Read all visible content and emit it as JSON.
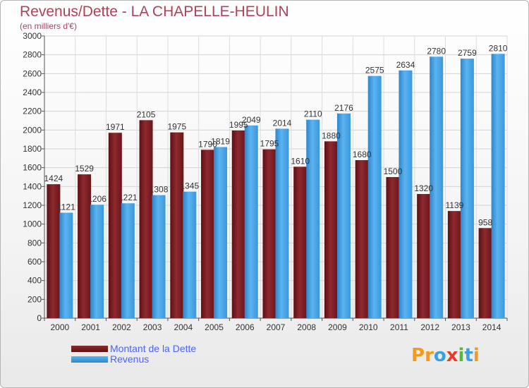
{
  "title": "Revenus/Dette - LA CHAPELLE-HEULIN",
  "subtitle": "(en milliers d'€)",
  "logo": {
    "text": "Proxiti",
    "letters": [
      {
        "ch": "P",
        "color": "#f39a1e"
      },
      {
        "ch": "r",
        "color": "#f39a1e"
      },
      {
        "ch": "o",
        "color": "#3aa0e0"
      },
      {
        "ch": "x",
        "color": "#e63b2e"
      },
      {
        "ch": "i",
        "color": "#5ab837"
      },
      {
        "ch": "t",
        "color": "#3aa0e0"
      },
      {
        "ch": "i",
        "color": "#f39a1e"
      }
    ]
  },
  "chart_data": {
    "type": "bar",
    "categories": [
      "2000",
      "2001",
      "2002",
      "2003",
      "2004",
      "2005",
      "2006",
      "2007",
      "2008",
      "2009",
      "2010",
      "2011",
      "2012",
      "2013",
      "2014"
    ],
    "series": [
      {
        "name": "Montant de la Dette",
        "color": "#7a1a1e",
        "values": [
          1424,
          1529,
          1971,
          2105,
          1975,
          1790,
          1995,
          1795,
          1610,
          1880,
          1680,
          1500,
          1320,
          1139,
          958
        ],
        "labels": [
          "1424",
          "1529",
          "1971",
          "2105",
          "1975",
          "1790",
          "1995",
          "1795",
          "1610",
          "1880",
          "1680",
          "1500",
          "1320",
          "1139",
          "958"
        ]
      },
      {
        "name": "Revenus",
        "color": "#3ea0e6",
        "values": [
          1121,
          1206,
          1221,
          1308,
          1345,
          1819,
          2049,
          2014,
          2110,
          2176,
          2575,
          2634,
          2780,
          2759,
          2810
        ],
        "labels": [
          "1121",
          "1206",
          "1221",
          "1308",
          "1345",
          "1819",
          "2049",
          "2014",
          "2110",
          "2176",
          "2575",
          "2634",
          "2780",
          "2759",
          "2810"
        ]
      }
    ],
    "ylim": [
      0,
      3000
    ],
    "yticks": [
      0,
      200,
      400,
      600,
      800,
      1000,
      1200,
      1400,
      1600,
      1800,
      2000,
      2200,
      2400,
      2600,
      2800,
      3000
    ],
    "grid": true,
    "legend": "bottom-left"
  }
}
